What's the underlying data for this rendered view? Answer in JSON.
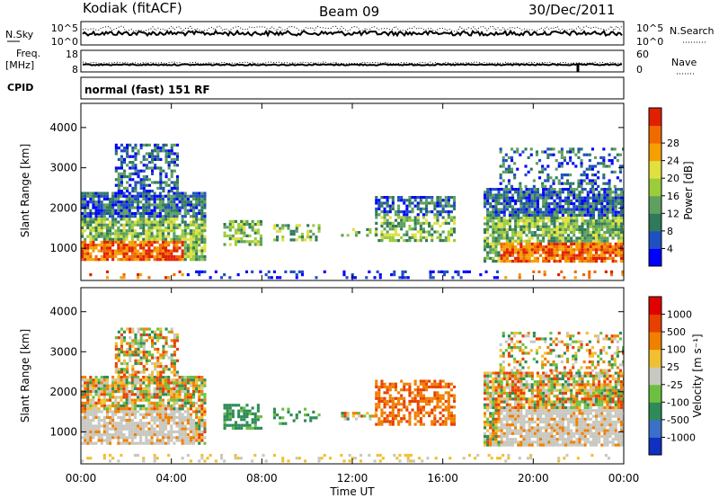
{
  "header": {
    "station": "Kodiak (fitACF)",
    "beam": "Beam 09",
    "date": "30/Dec/2011"
  },
  "top_panels": {
    "nsky_label": "N.Sky",
    "nsky_ticks": [
      "10^5",
      "10^0"
    ],
    "nsearch_label": "N.Search",
    "nsearch_ticks": [
      "10^5",
      "10^0"
    ],
    "freq_label_line1": "Freq.",
    "freq_label_line2": "[MHz]",
    "freq_ticks": [
      "18",
      "8"
    ],
    "nave_label": "Nave",
    "nave_ticks": [
      "60",
      "0"
    ],
    "cpid_label": "CPID",
    "cpid_text": "normal (fast) 151 RF"
  },
  "chart_data": [
    {
      "type": "heatmap",
      "name": "Power",
      "ylabel": "Slant Range [km]",
      "ylim": [
        200,
        4600
      ],
      "yticks": [
        "1000",
        "2000",
        "3000",
        "4000"
      ],
      "colorbar_label": "Power [dB]",
      "colorbar_ticks": [
        "4",
        "8",
        "12",
        "16",
        "20",
        "24",
        "28"
      ],
      "colors": [
        "#0000ff",
        "#1f4fc0",
        "#2f7a5a",
        "#5fa060",
        "#9bcc3a",
        "#e0e040",
        "#f5a000",
        "#f06a00",
        "#e02000"
      ]
    },
    {
      "type": "heatmap",
      "name": "Velocity",
      "ylabel": "Slant Range [km]",
      "ylim": [
        200,
        4600
      ],
      "yticks": [
        "1000",
        "2000",
        "3000",
        "4000"
      ],
      "colorbar_label": "Velocity [m s⁻¹]",
      "colorbar_ticks": [
        "1000",
        "500",
        "100",
        "25",
        "-25",
        "-100",
        "-500",
        "-1000"
      ],
      "colors": [
        "#1030c0",
        "#3a70c8",
        "#2e8b57",
        "#6cc040",
        "#c8c8c0",
        "#f0c030",
        "#f08000",
        "#e84000",
        "#e00000"
      ]
    }
  ],
  "xaxis": {
    "ticks": [
      "00:00",
      "04:00",
      "08:00",
      "12:00",
      "16:00",
      "20:00",
      "00:00"
    ],
    "label": "Time UT"
  }
}
